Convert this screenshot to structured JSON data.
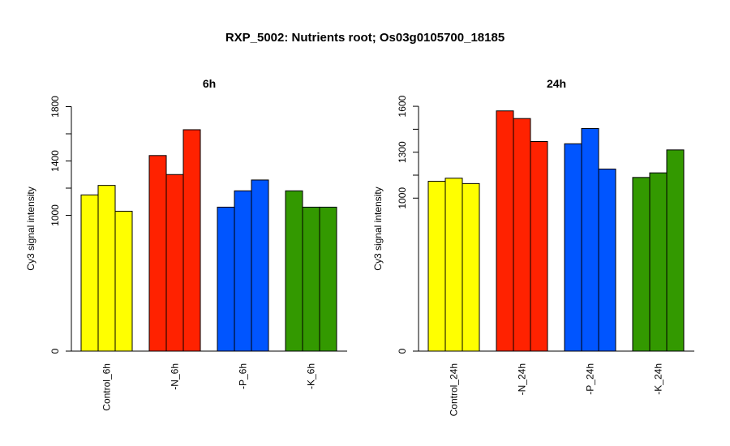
{
  "main_title": "RXP_5002: Nutrients root; Os03g0105700_18185",
  "chart_data": [
    {
      "type": "bar",
      "title": "6h",
      "ylabel": "Cy3 signal intensity",
      "ylim": [
        0,
        1800
      ],
      "yticks": [
        0,
        1000,
        1400,
        1800
      ],
      "minor_yticks": [
        1200,
        1600
      ],
      "groups": [
        {
          "label": "Control_6h",
          "color": "#FFFF00",
          "values": [
            1150,
            1220,
            1030
          ]
        },
        {
          "label": "-N_6h",
          "color": "#FF2200",
          "values": [
            1440,
            1300,
            1630
          ]
        },
        {
          "label": "-P_6h",
          "color": "#0055FF",
          "values": [
            1060,
            1180,
            1260
          ]
        },
        {
          "label": "-K_6h",
          "color": "#339900",
          "values": [
            1180,
            1060,
            1060
          ]
        }
      ]
    },
    {
      "type": "bar",
      "title": "24h",
      "ylabel": "Cy3 signal intensity",
      "ylim": [
        0,
        1600
      ],
      "yticks": [
        0,
        1000,
        1300,
        1600
      ],
      "minor_yticks": [
        1150,
        1450
      ],
      "groups": [
        {
          "label": "Control_24h",
          "color": "#FFFF00",
          "values": [
            1110,
            1130,
            1095
          ]
        },
        {
          "label": "-N_24h",
          "color": "#FF2200",
          "values": [
            1570,
            1520,
            1370
          ]
        },
        {
          "label": "-P_24h",
          "color": "#0055FF",
          "values": [
            1355,
            1455,
            1190
          ]
        },
        {
          "label": "-K_24h",
          "color": "#339900",
          "values": [
            1135,
            1165,
            1315
          ]
        }
      ]
    }
  ]
}
